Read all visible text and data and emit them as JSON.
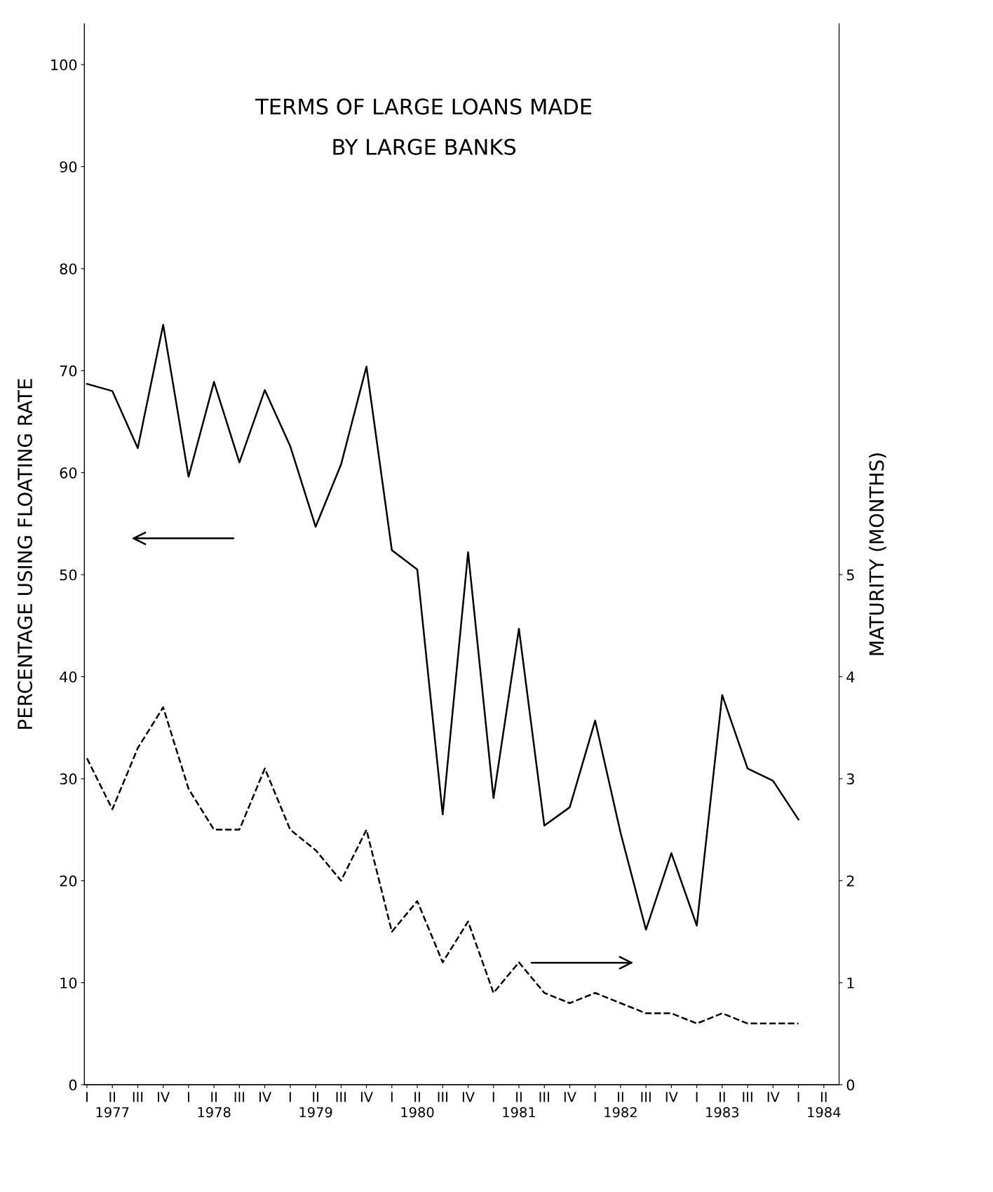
{
  "chart_data": {
    "type": "line",
    "title": "TERMS OF LARGE LOANS MADE\nBY LARGE BANKS",
    "ylabel": "PERCENTAGE USING FLOATING RATE",
    "y2label": "MATURITY (MONTHS)",
    "categories": [
      "I",
      "II\n1977",
      "III",
      "IV",
      "I",
      "II\n1978",
      "III",
      "IV",
      "I",
      "II\n1979",
      "III",
      "IV",
      "I",
      "II\n1980",
      "III",
      "IV",
      "I",
      "II\n1981",
      "III",
      "IV",
      "I",
      "II\n1982",
      "III",
      "IV",
      "I",
      "II\n1983",
      "III",
      "IV",
      "I",
      "II\n1984"
    ],
    "series": [
      {
        "color": "#000000",
        "line_style": "solid",
        "values": [
          68.7,
          68.0,
          62.4,
          74.5,
          59.6,
          68.9,
          61.0,
          68.1,
          62.6,
          54.7,
          60.8,
          70.4,
          52.4,
          50.5,
          26.5,
          52.2,
          28.1,
          44.7,
          25.4,
          27.2,
          35.7,
          24.7,
          15.2,
          22.7,
          15.6,
          38.2,
          31.0,
          29.8,
          26.0,
          null
        ]
      },
      {
        "color": "#000000",
        "line_style": "dashed",
        "axis": "y2",
        "values": [
          3.2,
          2.7,
          3.3,
          3.7,
          2.9,
          2.5,
          2.5,
          3.1,
          2.5,
          2.3,
          2.0,
          2.5,
          1.5,
          1.8,
          1.2,
          1.6,
          0.9,
          1.2,
          0.9,
          0.8,
          0.9,
          0.8,
          0.7,
          0.7,
          0.6,
          0.7,
          0.6,
          0.6,
          0.6,
          null
        ]
      }
    ],
    "ylim": [
      0,
      104
    ],
    "yticks": [
      0,
      10,
      20,
      30,
      40,
      50,
      60,
      70,
      80,
      90,
      100
    ],
    "y2lim": [
      0,
      10.4
    ],
    "y2ticks": [
      0,
      1,
      2,
      3,
      4,
      5
    ],
    "grid": false,
    "legend": false,
    "marker": "none"
  }
}
